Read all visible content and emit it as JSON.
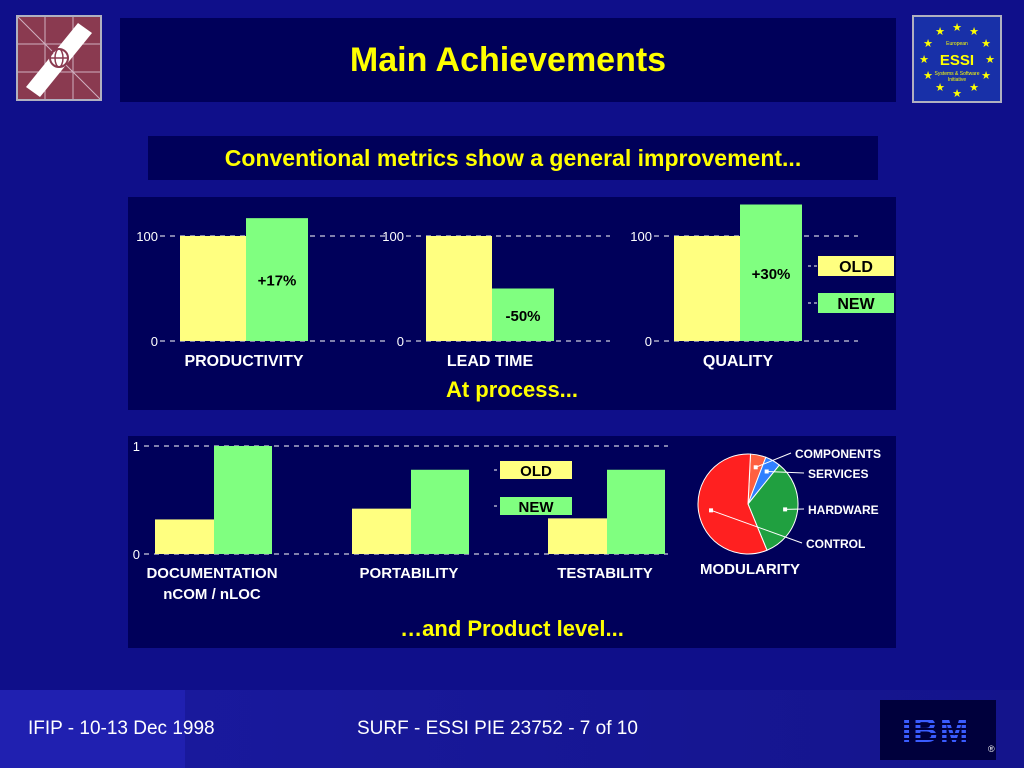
{
  "slide": {
    "title": "Main Achievements",
    "subtitle": "Conventional metrics show a general improvement...",
    "process_caption": "At process...",
    "product_caption": "…and Product level...",
    "footer_left": "IFIP - 10-13 Dec 1998",
    "footer_center": "SURF - ESSI PIE 23752 - 7 of 10"
  },
  "logos": {
    "right_lines": [
      "European",
      "ESSI",
      "Systems & Software",
      "Initiative"
    ],
    "ibm": "IBM"
  },
  "legend": {
    "old": "OLD",
    "new": "NEW"
  },
  "colors": {
    "old": "#ffff80",
    "new": "#80ff80",
    "label": "#ffffff",
    "panel": "#00005a"
  },
  "chart_data": [
    {
      "type": "bar",
      "group": "process",
      "series": [
        {
          "name": "OLD",
          "values": [
            100,
            100,
            100
          ]
        },
        {
          "name": "NEW",
          "values": [
            117,
            50,
            130
          ]
        }
      ],
      "categories": [
        "PRODUCTIVITY",
        "LEAD TIME",
        "QUALITY"
      ],
      "data_labels": [
        "+17%",
        "-50%",
        "+30%"
      ],
      "yticks": [
        "100",
        "0"
      ],
      "ylim": [
        0,
        130
      ]
    },
    {
      "type": "bar",
      "group": "product",
      "series": [
        {
          "name": "OLD",
          "values": [
            0.32,
            0.42,
            0.33
          ]
        },
        {
          "name": "NEW",
          "values": [
            1.0,
            0.78,
            0.78
          ]
        }
      ],
      "categories": [
        "DOCUMENTATION",
        "PORTABILITY",
        "TESTABILITY"
      ],
      "category_sublabels": [
        "nCOM / nLOC",
        "",
        ""
      ],
      "yticks": [
        "1",
        "0"
      ],
      "ylim": [
        0,
        1.1
      ]
    },
    {
      "type": "pie",
      "title": "MODULARITY",
      "slices": [
        {
          "label": "COMPONENTS",
          "value": 5,
          "color": "#ff6040"
        },
        {
          "label": "SERVICES",
          "value": 5,
          "color": "#3080ff"
        },
        {
          "label": "HARDWARE",
          "value": 33,
          "color": "#20a040"
        },
        {
          "label": "CONTROL",
          "value": 57,
          "color": "#ff2020"
        }
      ]
    }
  ]
}
